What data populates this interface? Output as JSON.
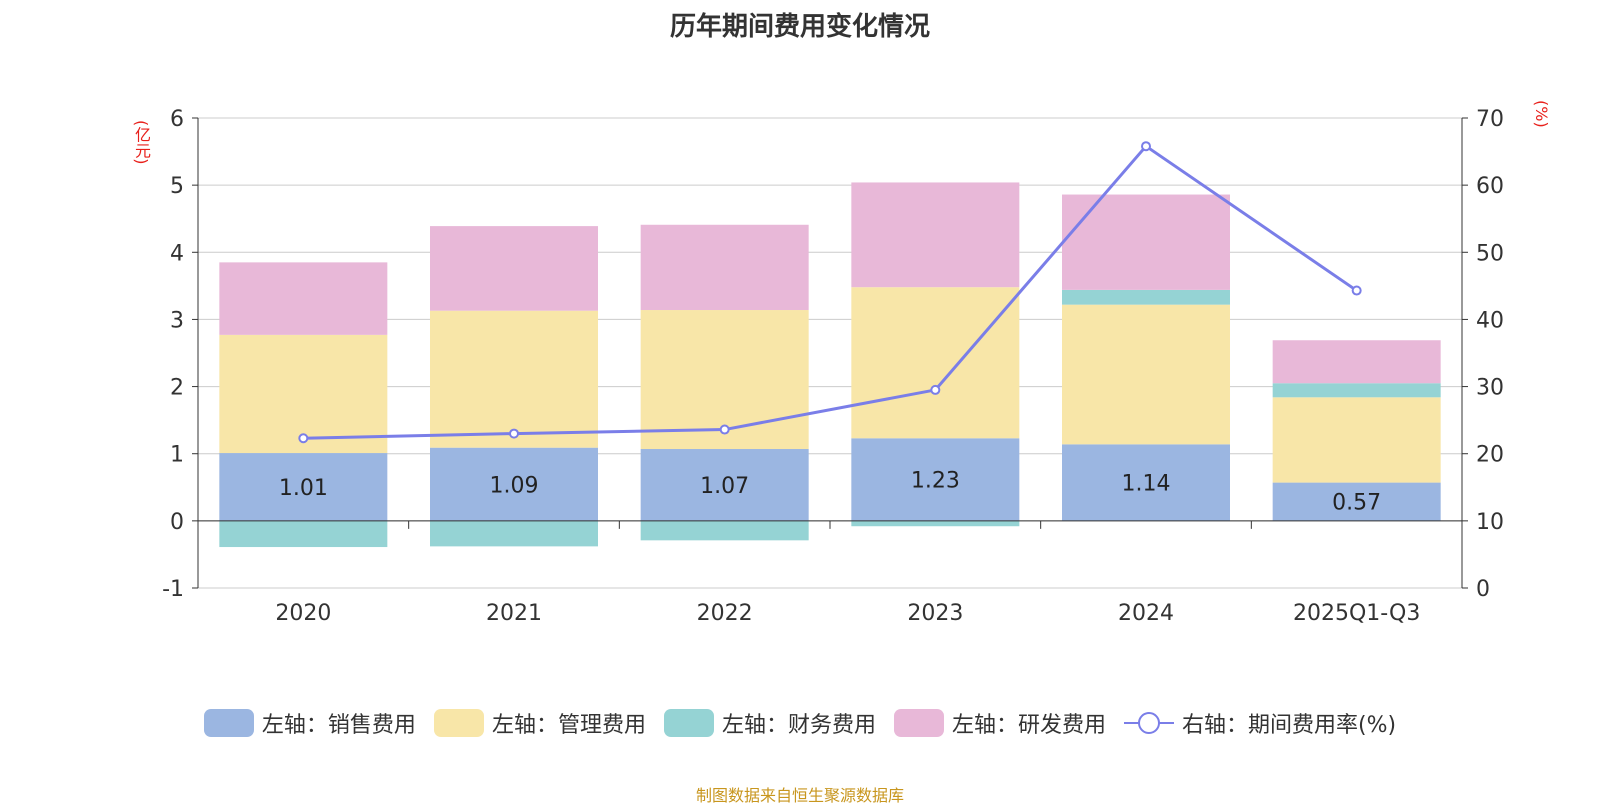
{
  "chart_data": {
    "type": "bar",
    "title": "历年期间费用变化情况",
    "left_unit": "(亿元)",
    "right_unit": "(%)",
    "categories": [
      "2020",
      "2021",
      "2022",
      "2023",
      "2024",
      "2025Q1-Q3"
    ],
    "left_ylim": [
      -1,
      6
    ],
    "left_ticks": [
      -1,
      0,
      1,
      2,
      3,
      4,
      5,
      6
    ],
    "right_ylim": [
      0,
      70
    ],
    "right_ticks": [
      0,
      10,
      20,
      30,
      40,
      50,
      60,
      70
    ],
    "series": [
      {
        "name": "左轴：销售费用",
        "color": "#9bb6e1",
        "values": [
          1.01,
          1.09,
          1.07,
          1.23,
          1.14,
          0.57
        ],
        "labels": [
          "1.01",
          "1.09",
          "1.07",
          "1.23",
          "1.14",
          "0.57"
        ]
      },
      {
        "name": "左轴：管理费用",
        "color": "#f8e6a8",
        "values": [
          1.76,
          2.04,
          2.07,
          2.25,
          2.08,
          1.27
        ]
      },
      {
        "name": "左轴：财务费用",
        "color": "#95d3d4",
        "values": [
          -0.39,
          -0.38,
          -0.29,
          -0.08,
          0.22,
          0.21
        ]
      },
      {
        "name": "左轴：研发费用",
        "color": "#e8b8d8",
        "values": [
          1.08,
          1.26,
          1.27,
          1.56,
          1.42,
          0.64
        ]
      }
    ],
    "line": {
      "name": "右轴：期间费用率(%)",
      "color": "#7a7ee8",
      "values": [
        22.3,
        23.0,
        23.6,
        29.5,
        65.8,
        44.3
      ]
    }
  },
  "footer": "制图数据来自恒生聚源数据库"
}
